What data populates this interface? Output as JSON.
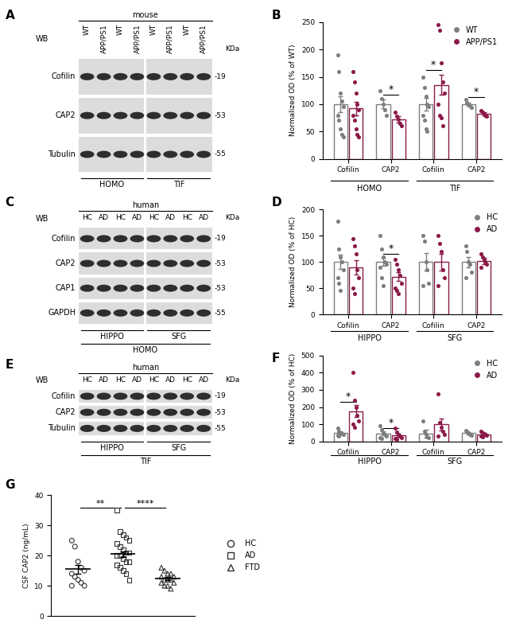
{
  "blots": [
    {
      "panel": "A",
      "wb": "WB",
      "header": "mouse",
      "kda": "KDa",
      "lanes": [
        "WT",
        "APP/PS1",
        "WT",
        "APP/PS1",
        "WT",
        "APP/PS1",
        "WT",
        "APP/PS1"
      ],
      "rows": [
        {
          "name": "Cofilin",
          "kda": "-19"
        },
        {
          "name": "CAP2",
          "kda": "-53"
        },
        {
          "name": "Tubulin",
          "kda": "-55"
        }
      ],
      "sections": [
        [
          "HOMO",
          "TIF"
        ]
      ]
    },
    {
      "panel": "C",
      "wb": "WB",
      "header": "human",
      "kda": "KDa",
      "lanes": [
        "HC",
        "AD",
        "HC",
        "AD",
        "HC",
        "AD",
        "HC",
        "AD"
      ],
      "rows": [
        {
          "name": "Cofilin",
          "kda": "-19"
        },
        {
          "name": "CAP2",
          "kda": "-53"
        },
        {
          "name": "CAP1",
          "kda": "-53"
        },
        {
          "name": "GAPDH",
          "kda": "-55"
        }
      ],
      "sections": [
        [
          "HIPPO",
          "SFG"
        ],
        [
          "HOMO"
        ]
      ]
    },
    {
      "panel": "E",
      "wb": "WB",
      "header": "human",
      "kda": "KDa",
      "lanes": [
        "HC",
        "AD",
        "HC",
        "AD",
        "HC",
        "AD",
        "HC",
        "AD"
      ],
      "rows": [
        {
          "name": "Cofilin",
          "kda": "-19"
        },
        {
          "name": "CAP2",
          "kda": "-53"
        },
        {
          "name": "Tubulin",
          "kda": "-55"
        }
      ],
      "sections": [
        [
          "HIPPO",
          "SFG"
        ],
        [
          "TIF"
        ]
      ]
    }
  ],
  "chart_data": [
    {
      "panel": "B",
      "type": "bar",
      "ylabel": "Normalized OD (% of WT)",
      "groups": [
        {
          "name": "HOMO",
          "categories": [
            "Cofilin",
            "CAP2"
          ]
        },
        {
          "name": "TIF",
          "categories": [
            "Cofilin",
            "CAP2"
          ]
        }
      ],
      "series": [
        {
          "name": "WT",
          "color": "#7f7f7f",
          "values": [
            100,
            100,
            100,
            100
          ],
          "errors": [
            15,
            8,
            12,
            3
          ],
          "points": [
            [
              190,
              160,
              120,
              105,
              95,
              80,
              70,
              55,
              45,
              40
            ],
            [
              125,
              110,
              100,
              90,
              80
            ],
            [
              150,
              130,
              115,
              100,
              95,
              80,
              70,
              55,
              50
            ],
            [
              108,
              102,
              100,
              97,
              94
            ]
          ]
        },
        {
          "name": "APP/PS1",
          "color": "#8b1a4a",
          "values": [
            92,
            72,
            135,
            82
          ],
          "errors": [
            12,
            6,
            18,
            3
          ],
          "points": [
            [
              160,
              140,
              120,
              100,
              90,
              80,
              70,
              55,
              45,
              40
            ],
            [
              85,
              78,
              72,
              65,
              60
            ],
            [
              245,
              235,
              175,
              140,
              120,
              100,
              80,
              75,
              60
            ],
            [
              88,
              85,
              82,
              80,
              78
            ]
          ]
        }
      ],
      "ylim": [
        0,
        250
      ],
      "yticks": [
        0,
        50,
        100,
        150,
        200,
        250
      ],
      "legend": "upper right",
      "annotations": [
        {
          "category_index": 1,
          "text": "*"
        },
        {
          "category_index": 2,
          "text": "*"
        },
        {
          "category_index": 3,
          "text": "*"
        }
      ]
    },
    {
      "panel": "D",
      "type": "bar",
      "ylabel": "Normalized OD (% of HC)",
      "groups": [
        {
          "name": "HIPPO",
          "categories": [
            "Cofilin",
            "CAP2"
          ]
        },
        {
          "name": "SFG",
          "categories": [
            "Cofilin",
            "CAP2"
          ]
        }
      ],
      "series": [
        {
          "name": "HC",
          "color": "#7f7f7f",
          "values": [
            100,
            100,
            100,
            100
          ],
          "errors": [
            14,
            8,
            17,
            10
          ],
          "points": [
            [
              178,
              125,
              110,
              100,
              85,
              70,
              60,
              45
            ],
            [
              150,
              125,
              110,
              100,
              95,
              90,
              70,
              55
            ],
            [
              150,
              140,
              100,
              85,
              60,
              55
            ],
            [
              130,
              120,
              100,
              95,
              80,
              70
            ]
          ]
        },
        {
          "name": "AD",
          "color": "#8b1a4a",
          "values": [
            90,
            72,
            100,
            102
          ],
          "errors": [
            14,
            8,
            16,
            6
          ],
          "points": [
            [
              145,
              130,
              115,
              85,
              70,
              50,
              40
            ],
            [
              105,
              95,
              85,
              75,
              60,
              50,
              45,
              40
            ],
            [
              150,
              135,
              120,
              85,
              70,
              55
            ],
            [
              115,
              110,
              105,
              100,
              95,
              90
            ]
          ]
        }
      ],
      "ylim": [
        0,
        200
      ],
      "yticks": [
        0,
        50,
        100,
        150,
        200
      ],
      "legend": "upper right",
      "annotations": [
        {
          "category_index": 1,
          "text": "*"
        }
      ]
    },
    {
      "panel": "F",
      "type": "bar",
      "ylabel": "Normalized OD (% of HC)",
      "groups": [
        {
          "name": "HIPPO",
          "categories": [
            "Cofilin",
            "CAP2"
          ]
        },
        {
          "name": "SFG",
          "categories": [
            "Cofilin",
            "CAP2"
          ]
        }
      ],
      "series": [
        {
          "name": "HC",
          "color": "#7f7f7f",
          "values": [
            50,
            45,
            45,
            48
          ],
          "errors": [
            10,
            12,
            25,
            8
          ],
          "points": [
            [
              75,
              60,
              50,
              45,
              40,
              35,
              30
            ],
            [
              90,
              70,
              50,
              40,
              30,
              20,
              15
            ],
            [
              120,
              60,
              40,
              25,
              20
            ],
            [
              65,
              60,
              50,
              40,
              35
            ]
          ]
        },
        {
          "name": "AD",
          "color": "#8b1a4a",
          "values": [
            175,
            35,
            100,
            42
          ],
          "errors": [
            35,
            10,
            35,
            5
          ],
          "points": [
            [
              400,
              240,
              200,
              150,
              120,
              100,
              80
            ],
            [
              75,
              55,
              40,
              30,
              20,
              15,
              10
            ],
            [
              275,
              110,
              80,
              60,
              40,
              30
            ],
            [
              60,
              50,
              45,
              40,
              35,
              30,
              25
            ]
          ]
        }
      ],
      "ylim": [
        0,
        500
      ],
      "yticks": [
        0,
        100,
        200,
        300,
        400,
        500
      ],
      "legend": "upper right",
      "annotations": [
        {
          "category_index": 0,
          "text": "*"
        },
        {
          "category_index": 1,
          "text": "*"
        }
      ]
    },
    {
      "panel": "G",
      "type": "scatter",
      "ylabel": "CSF CAP2 (ng/mL)",
      "series": [
        {
          "name": "HC",
          "color": "#333333",
          "marker": "circle",
          "mean": 15.5,
          "error": 1.5,
          "values": [
            25,
            23,
            18,
            16,
            15,
            14,
            13,
            12,
            11,
            10,
            10
          ]
        },
        {
          "name": "AD",
          "color": "#333333",
          "marker": "square",
          "mean": 20.5,
          "error": 1,
          "values": [
            35,
            28,
            27,
            26,
            25,
            24,
            23,
            22,
            21,
            21,
            20,
            20,
            19,
            18,
            18,
            17,
            16,
            15,
            14,
            12
          ]
        },
        {
          "name": "FTD",
          "color": "#333333",
          "marker": "triangle",
          "mean": 12.5,
          "error": 0.5,
          "values": [
            16,
            15,
            14,
            14,
            13,
            13,
            12,
            12,
            12,
            11,
            11,
            10,
            10,
            9
          ]
        }
      ],
      "ylim": [
        0,
        40
      ],
      "yticks": [
        0,
        10,
        20,
        30,
        40
      ],
      "legend": "right",
      "tick_labels": "y",
      "comparisons": [
        {
          "groups": [
            "HC",
            "AD"
          ],
          "text": "**"
        },
        {
          "groups": [
            "AD",
            "FTD"
          ],
          "text": "****"
        }
      ]
    }
  ]
}
